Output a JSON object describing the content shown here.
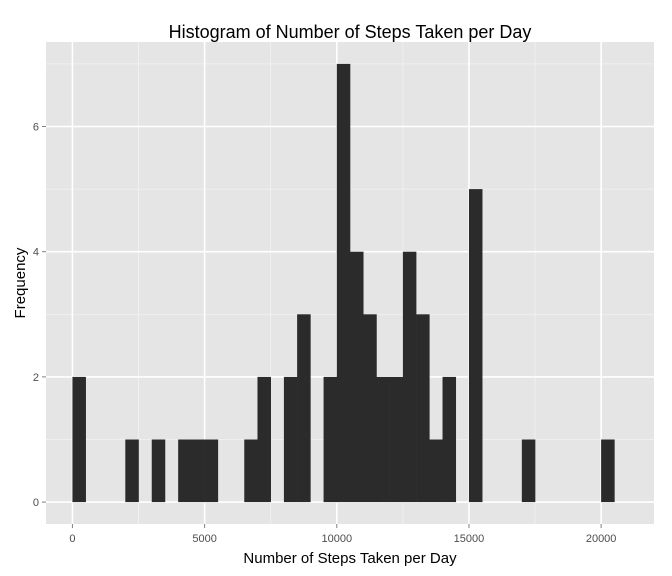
{
  "chart_data": {
    "type": "bar",
    "title": "Histogram of Number of Steps Taken per Day",
    "xlabel": "Number of Steps Taken per Day",
    "ylabel": "Frequency",
    "bin_width": 500,
    "xlim": [
      -1000,
      22000
    ],
    "ylim": [
      -0.35,
      7.35
    ],
    "x_ticks": [
      0,
      5000,
      10000,
      15000,
      20000
    ],
    "x_tick_labels": [
      "0",
      "5000",
      "10000",
      "15000",
      "20000"
    ],
    "y_ticks": [
      0,
      2,
      4,
      6
    ],
    "y_tick_labels": [
      "0",
      "2",
      "4",
      "6"
    ],
    "grid": true,
    "bar_color": "#2b2b2b",
    "panel_color": "#e5e5e5",
    "grid_color": "#ffffff",
    "bins": [
      {
        "x_start": 0,
        "count": 2
      },
      {
        "x_start": 2000,
        "count": 1
      },
      {
        "x_start": 3000,
        "count": 1
      },
      {
        "x_start": 4000,
        "count": 1
      },
      {
        "x_start": 4500,
        "count": 1
      },
      {
        "x_start": 5000,
        "count": 1
      },
      {
        "x_start": 6500,
        "count": 1
      },
      {
        "x_start": 7000,
        "count": 2
      },
      {
        "x_start": 8000,
        "count": 2
      },
      {
        "x_start": 8500,
        "count": 3
      },
      {
        "x_start": 9500,
        "count": 2
      },
      {
        "x_start": 10000,
        "count": 7
      },
      {
        "x_start": 10500,
        "count": 4
      },
      {
        "x_start": 11000,
        "count": 3
      },
      {
        "x_start": 11500,
        "count": 2
      },
      {
        "x_start": 12000,
        "count": 2
      },
      {
        "x_start": 12500,
        "count": 4
      },
      {
        "x_start": 13000,
        "count": 3
      },
      {
        "x_start": 13500,
        "count": 1
      },
      {
        "x_start": 14000,
        "count": 2
      },
      {
        "x_start": 15000,
        "count": 5
      },
      {
        "x_start": 17000,
        "count": 1
      },
      {
        "x_start": 20000,
        "count": 1
      }
    ]
  }
}
